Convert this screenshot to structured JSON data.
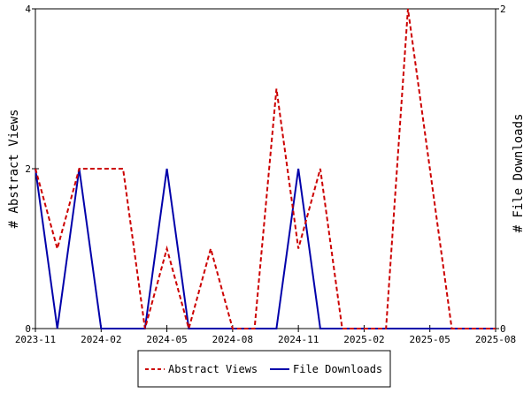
{
  "chart_data": {
    "type": "line",
    "x": [
      "2023-11",
      "2023-12",
      "2024-01",
      "2024-02",
      "2024-03",
      "2024-04",
      "2024-05",
      "2024-06",
      "2024-07",
      "2024-08",
      "2024-09",
      "2024-10",
      "2024-11",
      "2024-12",
      "2025-01",
      "2025-02",
      "2025-03",
      "2025-04",
      "2025-05",
      "2025-06",
      "2025-07",
      "2025-08"
    ],
    "x_ticks": [
      "2023-11",
      "2024-02",
      "2024-05",
      "2024-08",
      "2024-11",
      "2025-02",
      "2025-05",
      "2025-08"
    ],
    "series": [
      {
        "name": "Abstract Views",
        "axis": "left",
        "color": "#cc0000",
        "style": "dashed",
        "values": [
          2,
          1,
          2,
          2,
          2,
          0,
          1,
          0,
          1,
          0,
          0,
          3,
          1,
          2,
          0,
          0,
          0,
          4,
          2,
          0,
          0,
          0
        ]
      },
      {
        "name": "File Downloads",
        "axis": "right",
        "color": "#0000aa",
        "style": "solid",
        "values": [
          1,
          0,
          1,
          0,
          0,
          0,
          1,
          0,
          0,
          0,
          0,
          0,
          1,
          0,
          0,
          0,
          0,
          0,
          0,
          0,
          0,
          0
        ]
      }
    ],
    "ylabel": "# Abstract Views",
    "y2label": "# File Downloads",
    "ylim": [
      0,
      4
    ],
    "y2lim": [
      0,
      2
    ],
    "yticks": [
      "0",
      "2",
      "4"
    ],
    "y2ticks": [
      "0",
      "2"
    ],
    "grid": false,
    "legend": "bottom-center"
  }
}
